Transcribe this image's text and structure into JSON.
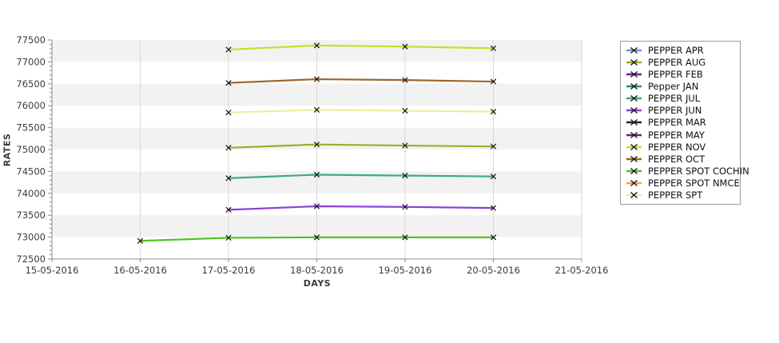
{
  "axis": {
    "x_title": "DAYS",
    "y_title": "RATES"
  },
  "chart_data": {
    "type": "line",
    "title": "",
    "xlabel": "DAYS",
    "ylabel": "RATES",
    "ylim": [
      72500,
      77500
    ],
    "y_tick_step": 500,
    "y_minor_step": 100,
    "x_ticks": [
      "15-05-2016",
      "16-05-2016",
      "17-05-2016",
      "18-05-2016",
      "19-05-2016",
      "20-05-2016",
      "21-05-2016"
    ],
    "y_ticks": [
      "77500",
      "77000",
      "76500",
      "76000",
      "75500",
      "75000",
      "74500",
      "74000",
      "73500",
      "73000",
      "72500"
    ],
    "grid": {
      "band_color": "#f2f2f2",
      "gridline_color": "#d8d8d8",
      "axis_color": "#8c8c8c",
      "bands_on": true
    },
    "marker": {
      "shape": "x",
      "color": "#141414"
    },
    "legend_position": "right",
    "legend": [
      {
        "label": "PEPPER APR",
        "color": "#5d9fc7"
      },
      {
        "label": "PEPPER AUG",
        "color": "#9cad2a"
      },
      {
        "label": "PEPPER FEB",
        "color": "#6e1f9e"
      },
      {
        "label": "Pepper JAN",
        "color": "#2a8c6e"
      },
      {
        "label": "PEPPER JUL",
        "color": "#3bab8b"
      },
      {
        "label": "PEPPER JUN",
        "color": "#8b3fd4"
      },
      {
        "label": "PEPPER MAR",
        "color": "#1b2631"
      },
      {
        "label": "PEPPER MAY",
        "color": "#6b1d76"
      },
      {
        "label": "PEPPER NOV",
        "color": "#c8dd2f"
      },
      {
        "label": "PEPPER OCT",
        "color": "#9d652b"
      },
      {
        "label": "PEPPER SPOT COCHIN",
        "color": "#50c321"
      },
      {
        "label": "PEPPER SPOT NMCE",
        "color": "#f9a13a"
      },
      {
        "label": "PEPPER SPT",
        "color": "#f2eca0"
      }
    ],
    "series": [
      {
        "name": "PEPPER NOV",
        "color": "#c8dd2f",
        "points": [
          [
            "17-05-2016",
            77280
          ],
          [
            "18-05-2016",
            77375
          ],
          [
            "19-05-2016",
            77350
          ],
          [
            "20-05-2016",
            77310
          ]
        ]
      },
      {
        "name": "PEPPER OCT",
        "color": "#9d652b",
        "points": [
          [
            "17-05-2016",
            76520
          ],
          [
            "18-05-2016",
            76605
          ],
          [
            "19-05-2016",
            76585
          ],
          [
            "20-05-2016",
            76550
          ]
        ]
      },
      {
        "name": "PEPPER SPT",
        "color": "#f2eca0",
        "points": [
          [
            "17-05-2016",
            75845
          ],
          [
            "18-05-2016",
            75905
          ],
          [
            "19-05-2016",
            75885
          ],
          [
            "20-05-2016",
            75865
          ]
        ]
      },
      {
        "name": "PEPPER AUG",
        "color": "#9cad2a",
        "points": [
          [
            "17-05-2016",
            75040
          ],
          [
            "18-05-2016",
            75115
          ],
          [
            "19-05-2016",
            75090
          ],
          [
            "20-05-2016",
            75070
          ]
        ]
      },
      {
        "name": "PEPPER JUL",
        "color": "#3bab8b",
        "points": [
          [
            "17-05-2016",
            74345
          ],
          [
            "18-05-2016",
            74425
          ],
          [
            "19-05-2016",
            74405
          ],
          [
            "20-05-2016",
            74385
          ]
        ]
      },
      {
        "name": "PEPPER JUN",
        "color": "#8b3fd4",
        "points": [
          [
            "17-05-2016",
            73625
          ],
          [
            "18-05-2016",
            73705
          ],
          [
            "19-05-2016",
            73690
          ],
          [
            "20-05-2016",
            73665
          ]
        ]
      },
      {
        "name": "PEPPER SPOT COCHIN",
        "color": "#50c321",
        "points": [
          [
            "16-05-2016",
            72915
          ],
          [
            "17-05-2016",
            72985
          ],
          [
            "18-05-2016",
            72995
          ],
          [
            "19-05-2016",
            72995
          ],
          [
            "20-05-2016",
            72995
          ]
        ]
      }
    ]
  }
}
